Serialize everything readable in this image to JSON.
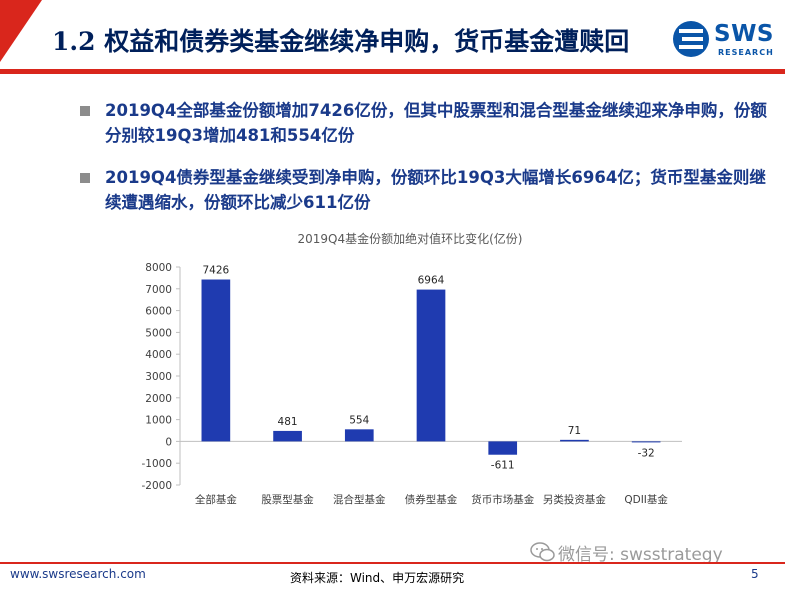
{
  "header": {
    "title": "1.2 权益和债券类基金继续净申购，货币基金遭赎回",
    "logo_text": "SWS",
    "logo_subtext": "RESEARCH"
  },
  "bullets": [
    "2019Q4全部基金份额增加7426亿份，但其中股票型和混合型基金继续迎来净申购，份额分别较19Q3增加481和554亿份",
    "2019Q4债券型基金继续受到净申购，份额环比19Q3大幅增长6964亿；货币型基金则继续遭遇缩水，份额环比减少611亿份"
  ],
  "chart_data": {
    "type": "bar",
    "title": "2019Q4基金份额加绝对值环比变化(亿份)",
    "categories": [
      "全部基金",
      "股票型基金",
      "混合型基金",
      "债券型基金",
      "货币市场基金",
      "另类投资基金",
      "QDII基金"
    ],
    "values": [
      7426,
      481,
      554,
      6964,
      -611,
      71,
      -32
    ],
    "data_labels": [
      "7426",
      "481",
      "554",
      "6964",
      "-611",
      "71",
      "-32"
    ],
    "ylim": [
      -2000,
      8000
    ],
    "yticks": [
      "8000",
      "7000",
      "6000",
      "5000",
      "4000",
      "3000",
      "2000",
      "1000",
      "0",
      "-1000",
      "-2000"
    ],
    "xlabel": "",
    "ylabel": "",
    "bar_color": "#1f3bb0",
    "grid": false
  },
  "watermark": "微信号: swsstrategy",
  "footer": {
    "url": "www.swsresearch.com",
    "source": "资料来源：Wind、申万宏源研究",
    "page": "5"
  },
  "colors": {
    "accent_red": "#d9261c",
    "title_navy": "#00205b",
    "text_blue": "#1a3a8a",
    "logo_blue": "#0a55a8"
  }
}
